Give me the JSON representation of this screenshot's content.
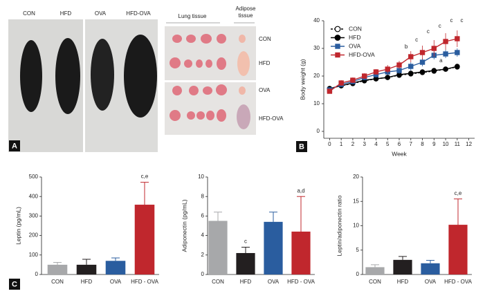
{
  "photos": {
    "mice": [
      "CON",
      "HFD",
      "OVA",
      "HFD-OVA"
    ],
    "lung_header": "Lung tissue",
    "adipose_header": "Adipose\ntissue",
    "rows": [
      "CON",
      "HFD",
      "OVA",
      "HFD-OVA"
    ]
  },
  "panels": [
    "A",
    "B",
    "C"
  ],
  "chart_data": [
    {
      "type": "line",
      "xlabel": "Week",
      "ylabel": "Body weight (g)",
      "x": [
        0,
        1,
        2,
        3,
        4,
        5,
        6,
        7,
        8,
        9,
        10,
        11
      ],
      "xlim": [
        -0.5,
        12.5
      ],
      "xticks": [
        0,
        1,
        2,
        3,
        4,
        5,
        6,
        7,
        8,
        9,
        10,
        11,
        12
      ],
      "ylim": [
        -2.5,
        40
      ],
      "yticks": [
        0,
        10,
        20,
        30,
        40
      ],
      "legend": "upper left",
      "series": [
        {
          "name": "CON",
          "color": "#000000",
          "marker": "circle",
          "filled": false,
          "dashed": true,
          "values": [
            15.5,
            16.5,
            17.3,
            18.3,
            19,
            19.5,
            20.3,
            20.8,
            21.3,
            21.8,
            22.5,
            23.3
          ]
        },
        {
          "name": "HFD",
          "color": "#000000",
          "marker": "circle",
          "filled": true,
          "dashed": false,
          "values": [
            15.5,
            16.5,
            17.5,
            18.5,
            19,
            19.5,
            20.5,
            21,
            21.5,
            22,
            22.5,
            23.5
          ]
        },
        {
          "name": "OVA",
          "color": "#2a5d9f",
          "marker": "square",
          "filled": true,
          "dashed": false,
          "values": [
            15,
            17,
            18,
            19.5,
            20.5,
            21.5,
            22,
            23.5,
            25,
            27.5,
            28,
            28.5
          ],
          "errors": [
            0.8,
            0.8,
            0.8,
            1,
            1,
            1,
            1.2,
            1.5,
            1.5,
            1.5,
            1.5,
            1.5
          ]
        },
        {
          "name": "HFD-OVA",
          "color": "#c0272d",
          "marker": "square",
          "filled": true,
          "dashed": false,
          "values": [
            14.5,
            17.5,
            18.5,
            20,
            21.5,
            22.5,
            24,
            27,
            28.5,
            30,
            32.5,
            33.5
          ],
          "errors": [
            0.8,
            1,
            1,
            1,
            1,
            1.5,
            1.5,
            2,
            2.5,
            3,
            3,
            3
          ]
        }
      ],
      "annotations": [
        {
          "text": "b",
          "x": 6.6,
          "y": 30.5
        },
        {
          "text": "c",
          "x": 7.5,
          "y": 33
        },
        {
          "text": "c",
          "x": 8.5,
          "y": 36
        },
        {
          "text": "c",
          "x": 9.5,
          "y": 38
        },
        {
          "text": "c",
          "x": 10.5,
          "y": 40
        },
        {
          "text": "c",
          "x": 11.4,
          "y": 40
        },
        {
          "text": "a",
          "x": 9.6,
          "y": 25.5
        }
      ]
    },
    {
      "type": "bar",
      "ylabel": "Leptin (pg/mL)",
      "categories": [
        "CON",
        "HFD",
        "OVA",
        "HFD - OVA"
      ],
      "colors": [
        "#a7a8aa",
        "#231f20",
        "#2a5d9f",
        "#c0272d"
      ],
      "values": [
        50,
        50,
        70,
        358
      ],
      "errors": [
        12,
        28,
        15,
        115
      ],
      "ylim": [
        0,
        500
      ],
      "yticks": [
        0,
        100,
        200,
        300,
        400,
        500
      ],
      "annotations": [
        {
          "at": 3,
          "text": "c,e"
        }
      ]
    },
    {
      "type": "bar",
      "ylabel": "Adiponectin (pg/mL)",
      "categories": [
        "CON",
        "HFD",
        "OVA",
        "HFD - OVA"
      ],
      "colors": [
        "#a7a8aa",
        "#231f20",
        "#2a5d9f",
        "#c0272d"
      ],
      "values": [
        5.5,
        2.2,
        5.4,
        4.4
      ],
      "errors": [
        0.9,
        0.6,
        1.0,
        3.6
      ],
      "ylim": [
        0,
        10
      ],
      "yticks": [
        0,
        2,
        4,
        6,
        8,
        10
      ],
      "annotations": [
        {
          "at": 1,
          "text": "c"
        },
        {
          "at": 3,
          "text": "a,d"
        }
      ]
    },
    {
      "type": "bar",
      "ylabel": "Leptin/adiponectin ratio",
      "categories": [
        "CON",
        "HFD",
        "OVA",
        "HFD - OVA"
      ],
      "colors": [
        "#a7a8aa",
        "#231f20",
        "#2a5d9f",
        "#c0272d"
      ],
      "values": [
        1.5,
        3.0,
        2.3,
        10.2
      ],
      "errors": [
        0.5,
        0.7,
        0.6,
        5.3
      ],
      "ylim": [
        0,
        20
      ],
      "yticks": [
        0,
        5,
        10,
        15,
        20
      ],
      "annotations": [
        {
          "at": 3,
          "text": "c,e"
        }
      ]
    }
  ]
}
